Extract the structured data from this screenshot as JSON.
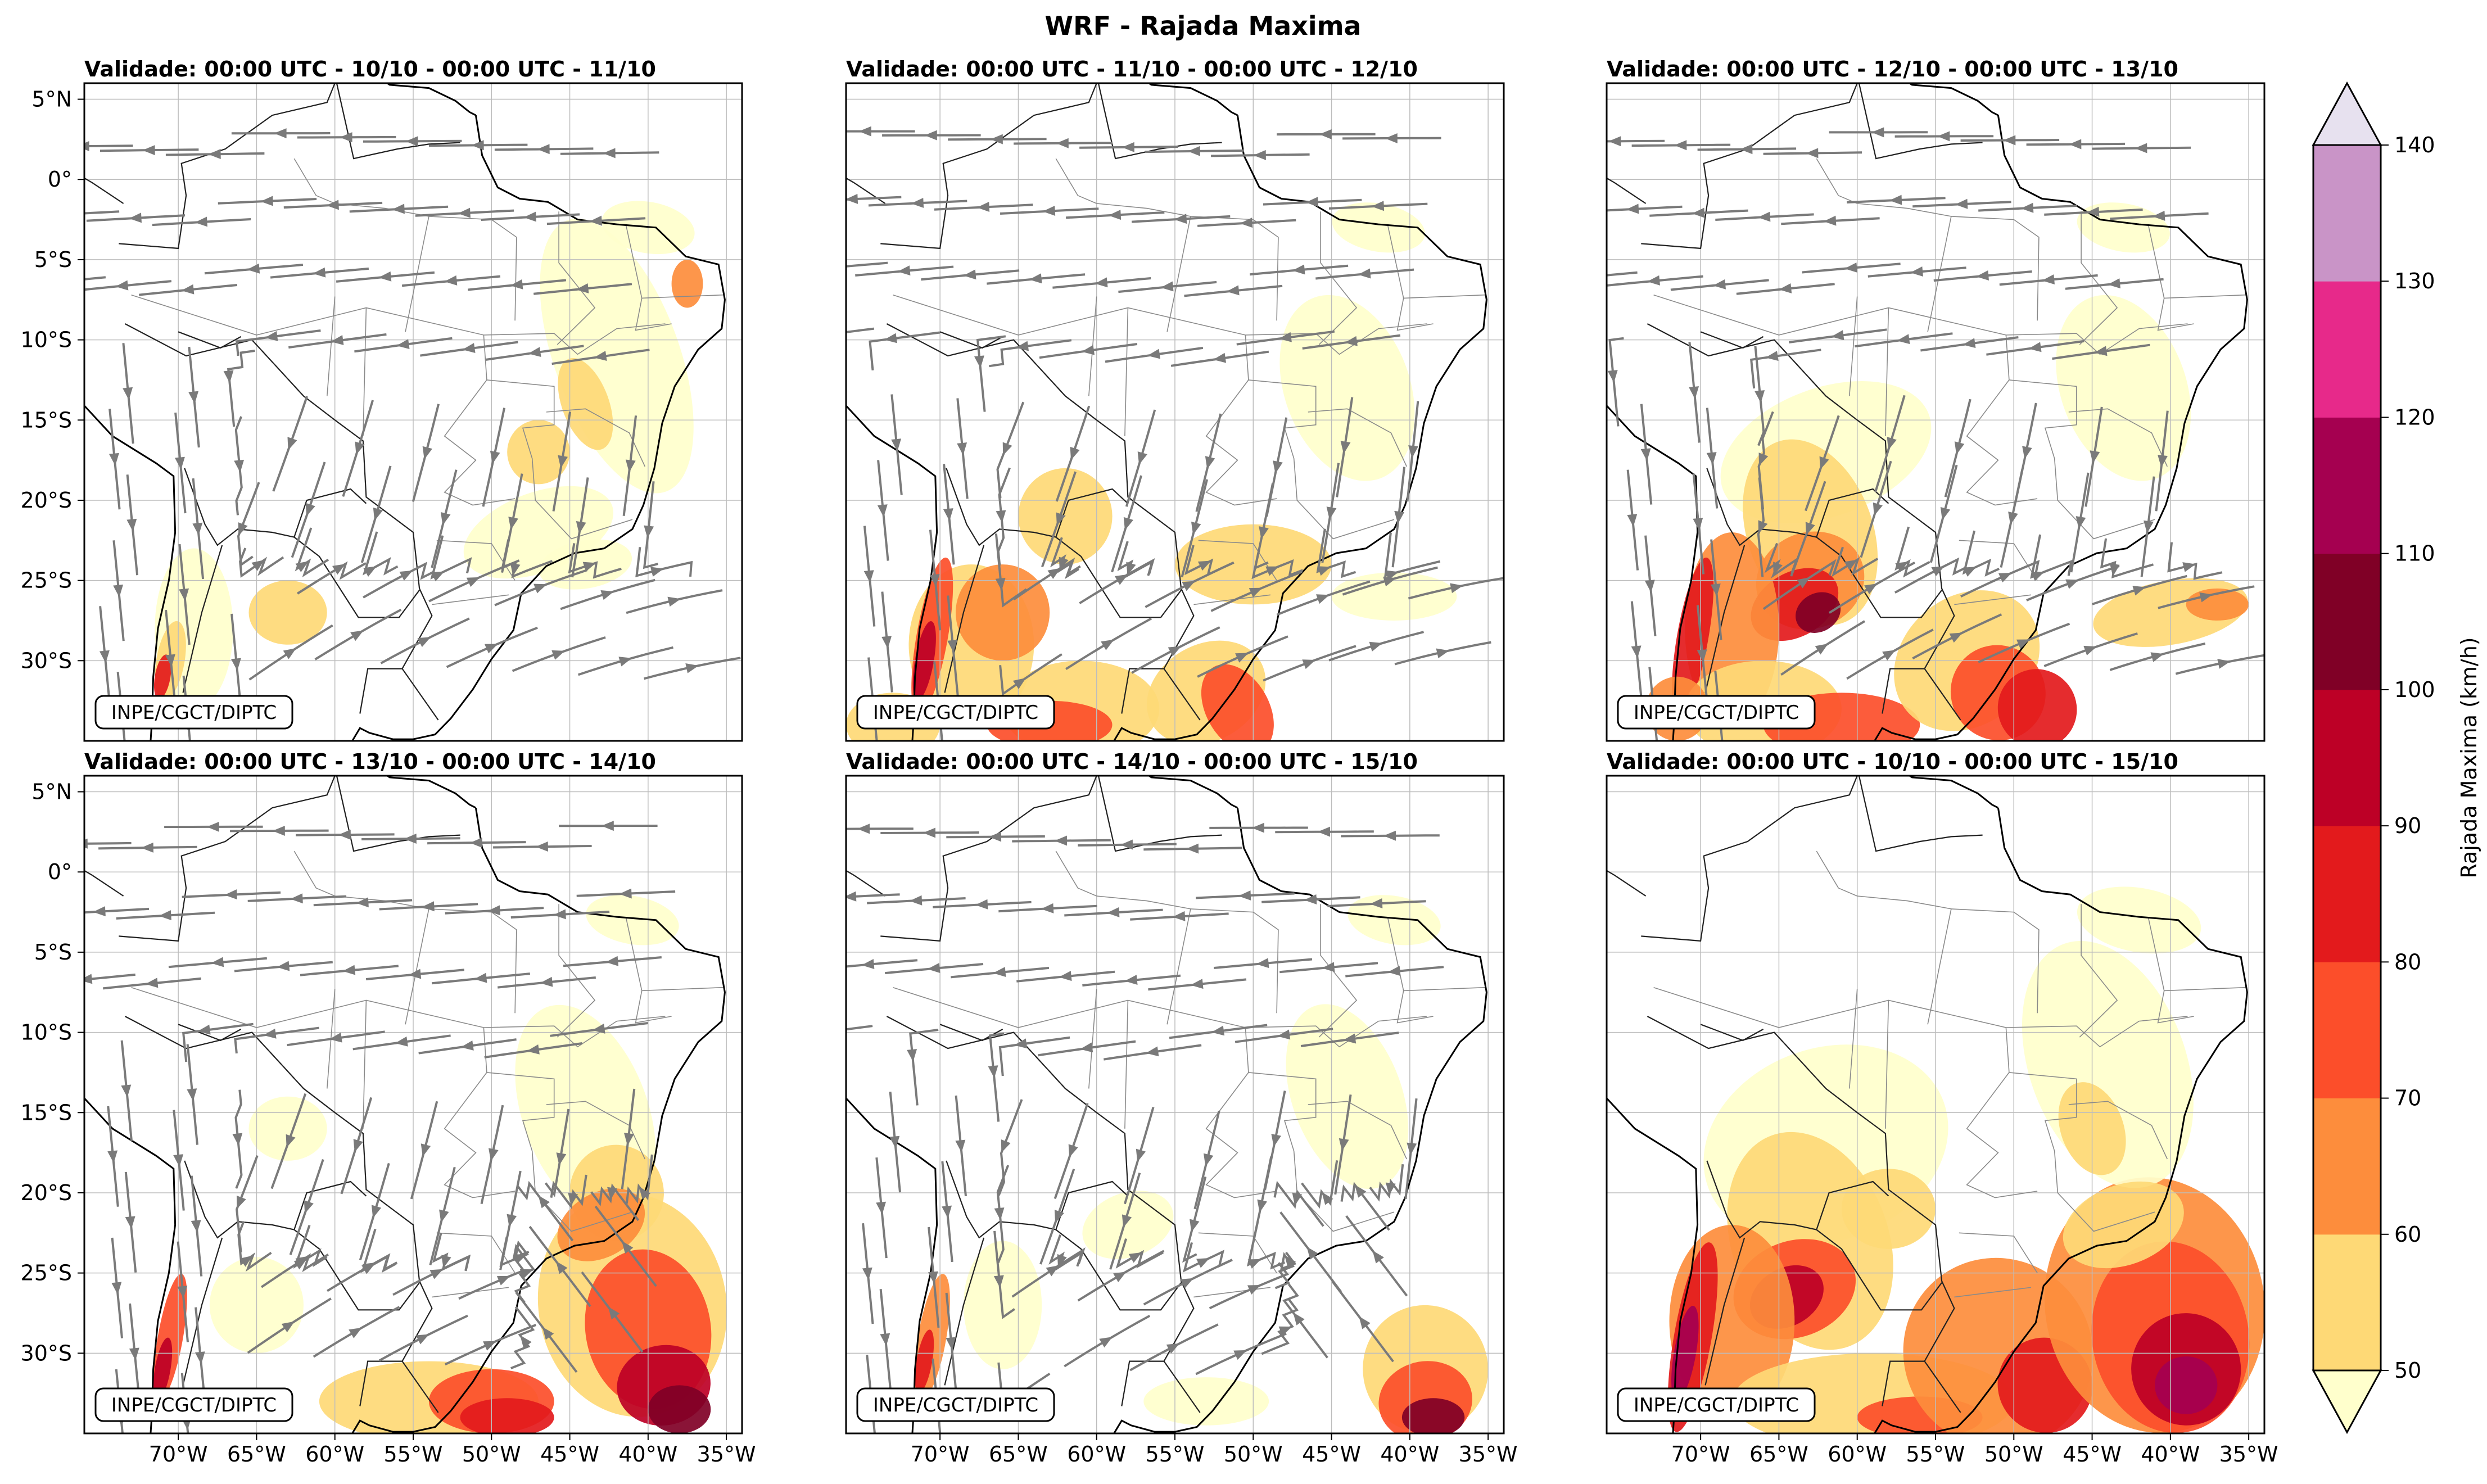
{
  "figure": {
    "title": "WRF - Rajada Maxima",
    "credit": "INPE/CGCT/DIPTC"
  },
  "panels": [
    {
      "title": "Validade: 00:00 UTC - 10/10 - 00:00 UTC - 11/10",
      "has_streamlines": true
    },
    {
      "title": "Validade: 00:00 UTC - 11/10 - 00:00 UTC - 12/10",
      "has_streamlines": true
    },
    {
      "title": "Validade: 00:00 UTC - 12/10 - 00:00 UTC - 13/10",
      "has_streamlines": true
    },
    {
      "title": "Validade: 00:00 UTC - 13/10 - 00:00 UTC - 14/10",
      "has_streamlines": true
    },
    {
      "title": "Validade: 00:00 UTC - 14/10 - 00:00 UTC - 15/10",
      "has_streamlines": true
    },
    {
      "title": "Validade: 00:00 UTC - 10/10 - 00:00 UTC - 15/10",
      "has_streamlines": false
    }
  ],
  "axes": {
    "lat_labels": [
      "5°N",
      "0°",
      "5°S",
      "10°S",
      "15°S",
      "20°S",
      "25°S",
      "30°S"
    ],
    "lat_values": [
      5,
      0,
      -5,
      -10,
      -15,
      -20,
      -25,
      -30
    ],
    "lon_labels": [
      "70°W",
      "65°W",
      "60°W",
      "55°W",
      "50°W",
      "45°W",
      "40°W",
      "35°W"
    ],
    "lon_values": [
      -70,
      -65,
      -60,
      -55,
      -50,
      -45,
      -40,
      -35
    ],
    "lon_range": [
      -76,
      -34
    ],
    "lat_range": [
      -35,
      6
    ]
  },
  "colorbar": {
    "label": "Rajada Maxima (km/h)",
    "ticks": [
      "50",
      "60",
      "70",
      "80",
      "90",
      "100",
      "110",
      "120",
      "130",
      "140"
    ],
    "colors": [
      "#ffffcc",
      "#fed976",
      "#fd8d3c",
      "#fc4e2a",
      "#e31a1c",
      "#bd0026",
      "#800026",
      "#a50050",
      "#e7298a",
      "#c994c7",
      "#e7e1ef"
    ]
  }
}
